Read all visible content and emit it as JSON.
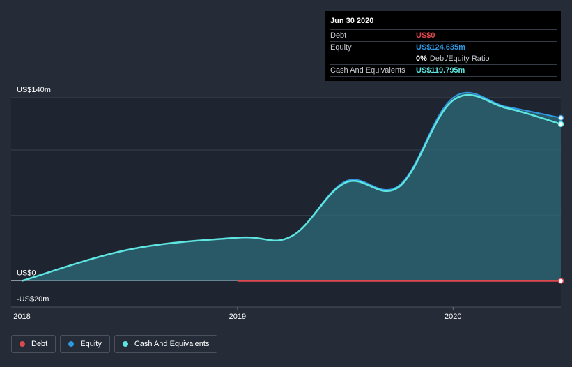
{
  "colors": {
    "background": "#252c38",
    "plot_background": "#1f2530",
    "debt": "#e0484f",
    "equity": "#2f96e0",
    "cash": "#5fe5e0",
    "area_fill": "#2e6b78"
  },
  "tooltip": {
    "date": "Jun 30 2020",
    "rows": [
      {
        "label": "Debt",
        "value": "US$0"
      },
      {
        "label": "Equity",
        "value": "US$124.635m"
      },
      {
        "label": "",
        "value": "0%",
        "suffix": "Debt/Equity Ratio"
      },
      {
        "label": "Cash And Equivalents",
        "value": "US$119.795m"
      }
    ]
  },
  "legend": [
    {
      "label": "Debt",
      "icon": "circle-dot-icon"
    },
    {
      "label": "Equity",
      "icon": "circle-dot-icon"
    },
    {
      "label": "Cash And Equivalents",
      "icon": "circle-dot-icon"
    }
  ],
  "chart_data": {
    "type": "area",
    "y_tick_labels": [
      "US$140m",
      "US$0",
      "-US$20m"
    ],
    "x_tick_labels": [
      "2018",
      "2019",
      "2020"
    ],
    "ylim": [
      -20,
      140
    ],
    "xlim": [
      2017.95,
      2020.5
    ],
    "series": [
      {
        "name": "Debt",
        "x": [
          2019.0,
          2020.5
        ],
        "values": [
          0,
          0
        ]
      },
      {
        "name": "Equity",
        "x": [
          2018.0,
          2018.5,
          2019.0,
          2019.25,
          2019.5,
          2019.75,
          2020.0,
          2020.25,
          2020.5
        ],
        "values": [
          0,
          24,
          33,
          34,
          76,
          73,
          140,
          133,
          124.6
        ]
      },
      {
        "name": "Cash And Equivalents",
        "x": [
          2018.0,
          2018.5,
          2019.0,
          2019.25,
          2019.5,
          2019.75,
          2020.0,
          2020.25,
          2020.5
        ],
        "values": [
          0,
          24,
          33,
          34,
          75,
          72,
          138,
          132,
          119.8
        ]
      }
    ]
  }
}
